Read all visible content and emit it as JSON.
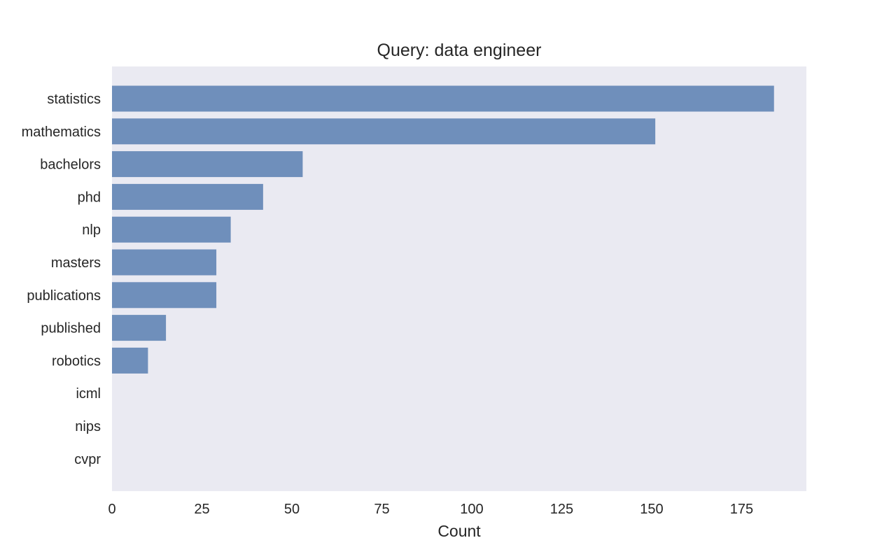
{
  "colors": {
    "plot_background": "#eaeaf2",
    "bar_fill": "#6f8fbb",
    "text": "#262626"
  },
  "chart_data": {
    "type": "bar",
    "orientation": "horizontal",
    "title": "Query: data engineer",
    "xlabel": "Count",
    "ylabel": "",
    "xlim": [
      0,
      193
    ],
    "xticks": [
      0,
      25,
      50,
      75,
      100,
      125,
      150,
      175
    ],
    "grid": false,
    "categories": [
      "statistics",
      "mathematics",
      "bachelors",
      "phd",
      "nlp",
      "masters",
      "publications",
      "published",
      "robotics",
      "icml",
      "nips",
      "cvpr"
    ],
    "values": [
      184,
      151,
      53,
      42,
      33,
      29,
      29,
      15,
      10,
      0,
      0,
      0
    ]
  }
}
